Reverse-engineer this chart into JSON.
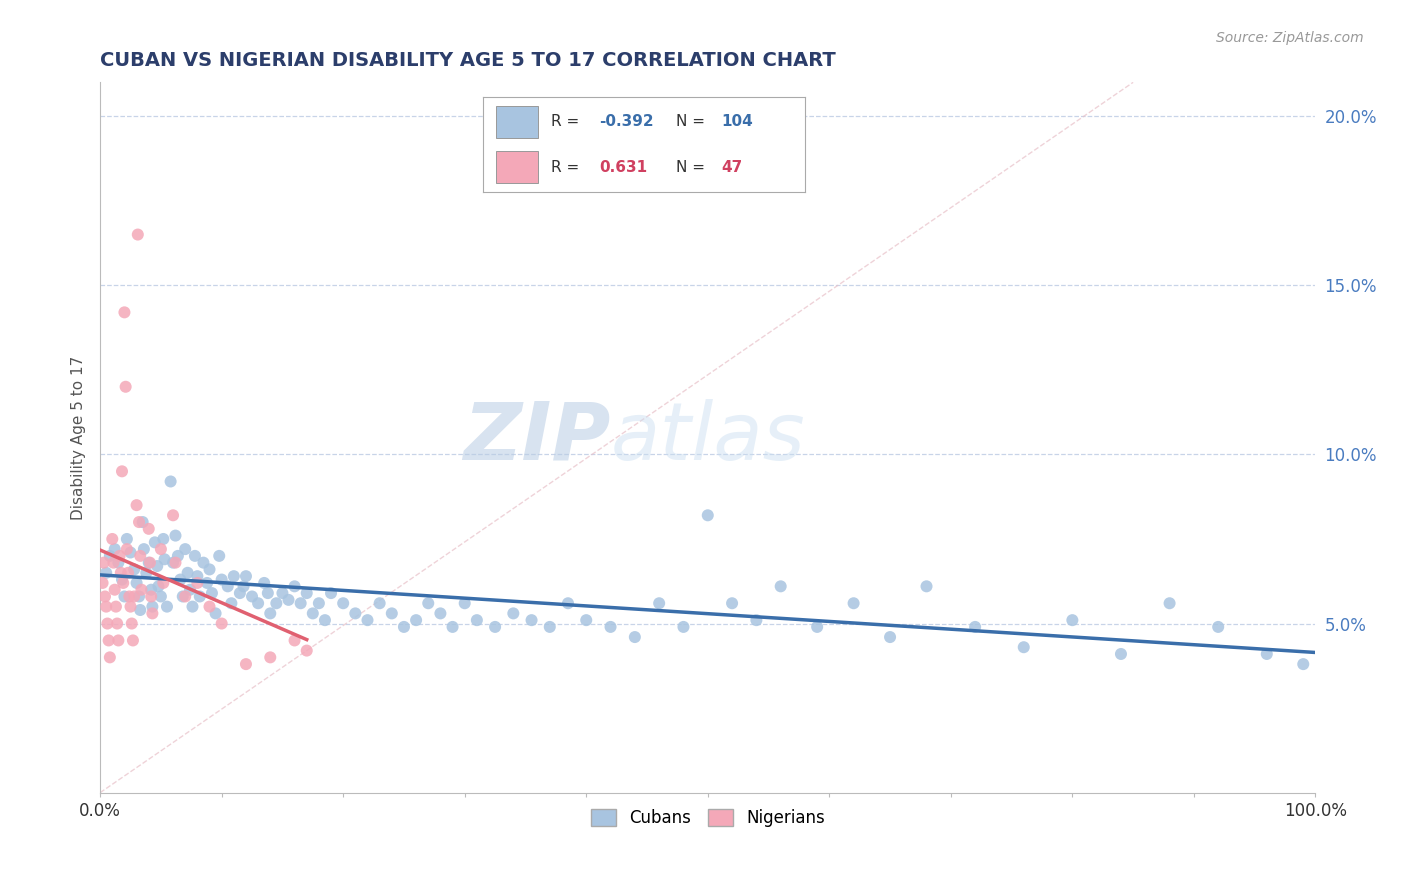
{
  "title": "CUBAN VS NIGERIAN DISABILITY AGE 5 TO 17 CORRELATION CHART",
  "source_text": "Source: ZipAtlas.com",
  "ylabel": "Disability Age 5 to 17",
  "xlim": [
    0,
    1.0
  ],
  "ylim": [
    0,
    0.21
  ],
  "xticks": [
    0.0,
    0.1,
    0.2,
    0.3,
    0.4,
    0.5,
    0.6,
    0.7,
    0.8,
    0.9,
    1.0
  ],
  "xticklabels": [
    "0.0%",
    "",
    "",
    "",
    "",
    "",
    "",
    "",
    "",
    "",
    "100.0%"
  ],
  "yticks": [
    0.0,
    0.05,
    0.1,
    0.15,
    0.2
  ],
  "yticklabels": [
    "",
    "5.0%",
    "10.0%",
    "15.0%",
    "20.0%"
  ],
  "cubans_R": -0.392,
  "cubans_N": 104,
  "nigerians_R": 0.631,
  "nigerians_N": 47,
  "cuban_color": "#a8c4e0",
  "nigerian_color": "#f4a8b8",
  "cuban_line_color": "#3a6eaa",
  "nigerian_line_color": "#e06070",
  "watermark_color": "#dde8f4",
  "title_color": "#2c3e6b",
  "title_fontsize": 14,
  "cubans_x": [
    0.005,
    0.008,
    0.012,
    0.015,
    0.018,
    0.02,
    0.022,
    0.025,
    0.028,
    0.03,
    0.032,
    0.033,
    0.035,
    0.036,
    0.038,
    0.04,
    0.042,
    0.043,
    0.045,
    0.047,
    0.048,
    0.05,
    0.052,
    0.053,
    0.055,
    0.058,
    0.06,
    0.062,
    0.064,
    0.066,
    0.068,
    0.07,
    0.072,
    0.074,
    0.076,
    0.078,
    0.08,
    0.082,
    0.085,
    0.088,
    0.09,
    0.092,
    0.095,
    0.098,
    0.1,
    0.105,
    0.108,
    0.11,
    0.115,
    0.118,
    0.12,
    0.125,
    0.13,
    0.135,
    0.138,
    0.14,
    0.145,
    0.15,
    0.155,
    0.16,
    0.165,
    0.17,
    0.175,
    0.18,
    0.185,
    0.19,
    0.2,
    0.21,
    0.22,
    0.23,
    0.24,
    0.25,
    0.26,
    0.27,
    0.28,
    0.29,
    0.3,
    0.31,
    0.325,
    0.34,
    0.355,
    0.37,
    0.385,
    0.4,
    0.42,
    0.44,
    0.46,
    0.48,
    0.5,
    0.52,
    0.54,
    0.56,
    0.59,
    0.62,
    0.65,
    0.68,
    0.72,
    0.76,
    0.8,
    0.84,
    0.88,
    0.92,
    0.96,
    0.99
  ],
  "cubans_y": [
    0.065,
    0.07,
    0.072,
    0.068,
    0.063,
    0.058,
    0.075,
    0.071,
    0.066,
    0.062,
    0.058,
    0.054,
    0.08,
    0.072,
    0.065,
    0.068,
    0.06,
    0.055,
    0.074,
    0.067,
    0.061,
    0.058,
    0.075,
    0.069,
    0.055,
    0.092,
    0.068,
    0.076,
    0.07,
    0.063,
    0.058,
    0.072,
    0.065,
    0.06,
    0.055,
    0.07,
    0.064,
    0.058,
    0.068,
    0.062,
    0.066,
    0.059,
    0.053,
    0.07,
    0.063,
    0.061,
    0.056,
    0.064,
    0.059,
    0.061,
    0.064,
    0.058,
    0.056,
    0.062,
    0.059,
    0.053,
    0.056,
    0.059,
    0.057,
    0.061,
    0.056,
    0.059,
    0.053,
    0.056,
    0.051,
    0.059,
    0.056,
    0.053,
    0.051,
    0.056,
    0.053,
    0.049,
    0.051,
    0.056,
    0.053,
    0.049,
    0.056,
    0.051,
    0.049,
    0.053,
    0.051,
    0.049,
    0.056,
    0.051,
    0.049,
    0.046,
    0.056,
    0.049,
    0.082,
    0.056,
    0.051,
    0.061,
    0.049,
    0.056,
    0.046,
    0.061,
    0.049,
    0.043,
    0.051,
    0.041,
    0.056,
    0.049,
    0.041,
    0.038
  ],
  "nigerians_x": [
    0.002,
    0.003,
    0.004,
    0.005,
    0.006,
    0.007,
    0.008,
    0.01,
    0.011,
    0.012,
    0.013,
    0.014,
    0.015,
    0.016,
    0.017,
    0.018,
    0.019,
    0.02,
    0.021,
    0.022,
    0.023,
    0.024,
    0.025,
    0.026,
    0.027,
    0.028,
    0.03,
    0.031,
    0.032,
    0.033,
    0.034,
    0.04,
    0.041,
    0.042,
    0.043,
    0.05,
    0.052,
    0.06,
    0.062,
    0.07,
    0.08,
    0.09,
    0.1,
    0.12,
    0.14,
    0.16,
    0.17
  ],
  "nigerians_y": [
    0.062,
    0.068,
    0.058,
    0.055,
    0.05,
    0.045,
    0.04,
    0.075,
    0.068,
    0.06,
    0.055,
    0.05,
    0.045,
    0.07,
    0.065,
    0.095,
    0.062,
    0.142,
    0.12,
    0.072,
    0.065,
    0.058,
    0.055,
    0.05,
    0.045,
    0.058,
    0.085,
    0.165,
    0.08,
    0.07,
    0.06,
    0.078,
    0.068,
    0.058,
    0.053,
    0.072,
    0.062,
    0.082,
    0.068,
    0.058,
    0.062,
    0.055,
    0.05,
    0.038,
    0.04,
    0.045,
    0.042
  ],
  "background_color": "#ffffff",
  "grid_color": "#c8d4e8",
  "axis_color": "#bbbbbb"
}
